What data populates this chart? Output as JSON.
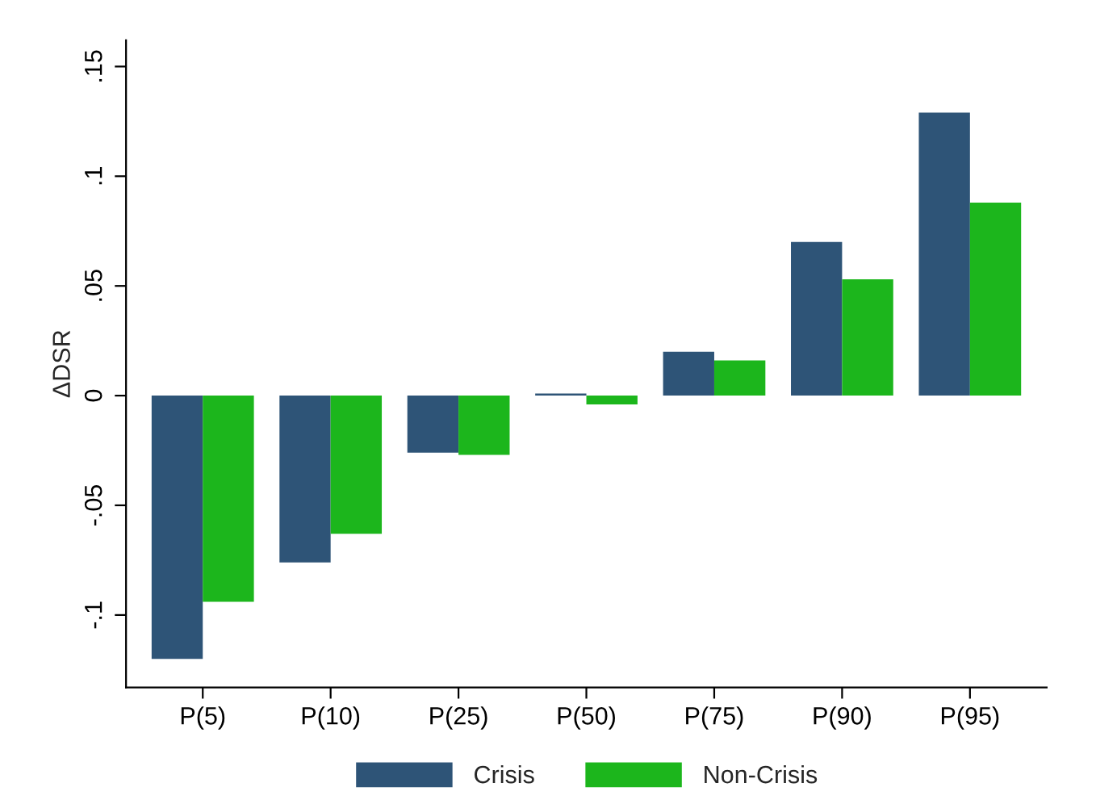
{
  "chart_data": {
    "type": "bar",
    "ylabel": "ΔDSR",
    "categories": [
      "P(5)",
      "P(10)",
      "P(25)",
      "P(50)",
      "P(75)",
      "P(90)",
      "P(95)"
    ],
    "series": [
      {
        "name": "Crisis",
        "color": "#2e5477",
        "values": [
          -0.12,
          -0.076,
          -0.026,
          0.001,
          0.02,
          0.07,
          0.129
        ]
      },
      {
        "name": "Non-Crisis",
        "color": "#1cb61c",
        "values": [
          -0.094,
          -0.063,
          -0.027,
          -0.004,
          0.016,
          0.053,
          0.088
        ]
      }
    ],
    "ylim": [
      -0.133,
      0.162
    ],
    "yticks": [
      {
        "value": -0.1,
        "label": "-.1"
      },
      {
        "value": -0.05,
        "label": "-.05"
      },
      {
        "value": 0,
        "label": "0"
      },
      {
        "value": 0.05,
        "label": ".05"
      },
      {
        "value": 0.1,
        "label": ".1"
      },
      {
        "value": 0.15,
        "label": ".15"
      }
    ],
    "grid": false,
    "legend": "bottom"
  }
}
